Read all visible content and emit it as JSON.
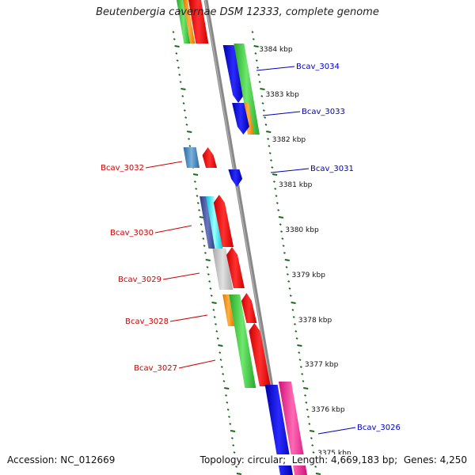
{
  "title": "Beutenbergia cavernae DSM 12333, complete genome",
  "accession_label": "Accession:",
  "accession": "NC_012669",
  "topology_label": "Topology:",
  "topology": "circular",
  "length_label": "Length:",
  "length": "4,669,183 bp",
  "genes_label": "Genes:",
  "genes": "4,250",
  "colors": {
    "forward_label": "#0000bb",
    "reverse_label": "#cc0000",
    "tick": "#1a6a1a",
    "backbone": "#888888"
  },
  "kbp_labels": [
    "3384 kbp",
    "3383 kbp",
    "3382 kbp",
    "3381 kbp",
    "3380 kbp",
    "3379 kbp",
    "3378 kbp",
    "3377 kbp",
    "3376 kbp",
    "3375 kbp"
  ],
  "gene_labels_forward": [
    "Bcav_3034",
    "Bcav_3033",
    "Bcav_3031",
    "Bcav_3026"
  ],
  "gene_labels_reverse": [
    "Bcav_3032",
    "Bcav_3030",
    "Bcav_3029",
    "Bcav_3028",
    "Bcav_3027"
  ]
}
